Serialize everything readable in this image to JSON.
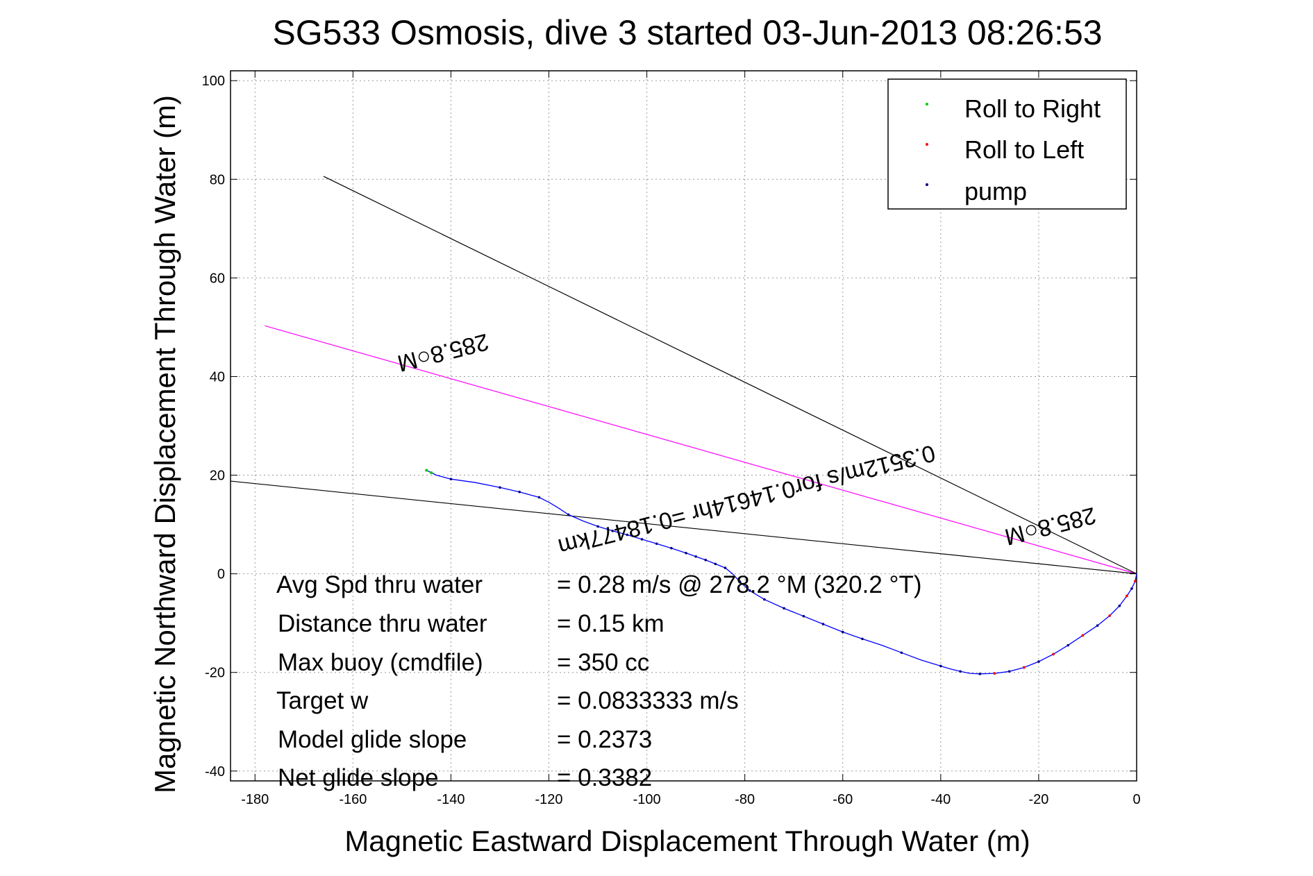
{
  "chart_data": {
    "type": "scatter",
    "title": "SG533 Osmosis, dive 3 started 03-Jun-2013 08:26:53",
    "xlabel": "Magnetic Eastward Displacement Through Water (m)",
    "ylabel": "Magnetic Northward Displacement Through Water (m)",
    "xlim": [
      -185,
      0
    ],
    "ylim": [
      -42,
      102
    ],
    "xticks": [
      -180,
      -160,
      -140,
      -120,
      -100,
      -80,
      -60,
      -40,
      -20,
      0
    ],
    "yticks": [
      -40,
      -20,
      0,
      20,
      40,
      60,
      80,
      100
    ],
    "grid": true,
    "legend_position": "top-right",
    "legend": [
      {
        "label": "Roll to Right",
        "color": "#00cc00"
      },
      {
        "label": "Roll to Left",
        "color": "#ff0000"
      },
      {
        "label": "pump",
        "color": "#000080"
      }
    ],
    "track": {
      "name": "track",
      "color": "#0000ff",
      "x": [
        0,
        -0.3,
        -1,
        -2,
        -3.5,
        -5.5,
        -8,
        -11,
        -14,
        -17,
        -20,
        -23,
        -26,
        -29,
        -32,
        -34,
        -36,
        -38,
        -40,
        -44,
        -48,
        -52,
        -56,
        -60,
        -64,
        -68,
        -72,
        -76,
        -79,
        -81,
        -82.5,
        -84,
        -86,
        -88,
        -90,
        -92,
        -95,
        -98,
        -101,
        -104,
        -107,
        -110,
        -113,
        -116,
        -118,
        -120,
        -122,
        -126,
        -130,
        -135,
        -140,
        -143,
        -144,
        -145
      ],
      "y": [
        0,
        -1.5,
        -3,
        -4.5,
        -6.5,
        -8.5,
        -10.5,
        -12.5,
        -14.5,
        -16.3,
        -17.8,
        -19,
        -19.8,
        -20.2,
        -20.3,
        -20.2,
        -19.8,
        -19.3,
        -18.7,
        -17.5,
        -16,
        -14.5,
        -13.2,
        -11.8,
        -10.2,
        -8.6,
        -7,
        -5.2,
        -3.4,
        -1.6,
        0,
        1.2,
        2,
        2.8,
        3.5,
        4.2,
        5.2,
        6.1,
        7,
        7.9,
        8.7,
        9.6,
        10.7,
        12,
        13.3,
        14.5,
        15.5,
        16.6,
        17.5,
        18.5,
        19.2,
        20,
        20.5,
        21
      ]
    },
    "pump_points": {
      "x": [
        -0.3,
        -1,
        -2,
        -3.5,
        -5.5,
        -8,
        -11,
        -14,
        -17,
        -20,
        -23,
        -26,
        -29,
        -32,
        -36,
        -40,
        -48,
        -56,
        -60,
        -64,
        -68,
        -72,
        -76,
        -79,
        -81,
        -84,
        -86,
        -88,
        -90,
        -92,
        -95,
        -98,
        -101,
        -104,
        -107,
        -110,
        -116,
        -122,
        -126,
        -130,
        -140
      ],
      "y": [
        -1.5,
        -3,
        -4.5,
        -6.5,
        -8.5,
        -10.5,
        -12.5,
        -14.5,
        -16.3,
        -17.8,
        -19,
        -19.8,
        -20.2,
        -20.3,
        -19.8,
        -18.7,
        -16,
        -13.2,
        -11.8,
        -10.2,
        -8.6,
        -7,
        -5.2,
        -3.4,
        -1.6,
        1.2,
        2,
        2.8,
        3.5,
        4.2,
        5.2,
        6.1,
        7,
        7.9,
        8.7,
        9.6,
        12,
        15.5,
        16.6,
        17.5,
        19.2
      ]
    },
    "roll_left_points": {
      "x": [
        -0.3,
        -2,
        -5.5,
        -11,
        -17,
        -23,
        -29
      ],
      "y": [
        -1.5,
        -4.5,
        -8.5,
        -12.5,
        -16.3,
        -19,
        -20.2
      ]
    },
    "roll_right_points": {
      "x": [
        -144,
        -145
      ],
      "y": [
        20.5,
        21
      ]
    },
    "reference_lines": [
      {
        "name": "current-line",
        "color": "#ff00ff",
        "x": [
          0,
          -178
        ],
        "y": [
          0,
          50.3
        ]
      },
      {
        "name": "upper-bound-line",
        "color": "#000000",
        "x": [
          0,
          -166
        ],
        "y": [
          0,
          80.6
        ]
      },
      {
        "name": "lower-bound-line",
        "color": "#000000",
        "x": [
          0,
          -185
        ],
        "y": [
          0,
          18.8
        ]
      }
    ],
    "annotations": {
      "heading_main": "285.8○M",
      "heading_near": "285.8○M",
      "current": "0.3512m/s for0.14614hr =0.18477km"
    },
    "stats": [
      {
        "label": "Avg Spd thru water",
        "value": "=  0.28 m/s @ 278.2 °M (320.2 °T)"
      },
      {
        "label": "Distance thru water",
        "value": "=  0.15 km"
      },
      {
        "label": "Max buoy (cmdfile)",
        "value": "= 350 cc"
      },
      {
        "label": "Target w",
        "value": "= 0.0833333 m/s"
      },
      {
        "label": "Model glide slope",
        "value": "= 0.2373"
      },
      {
        "label": "Net glide slope",
        "value": "= 0.3382"
      }
    ]
  }
}
